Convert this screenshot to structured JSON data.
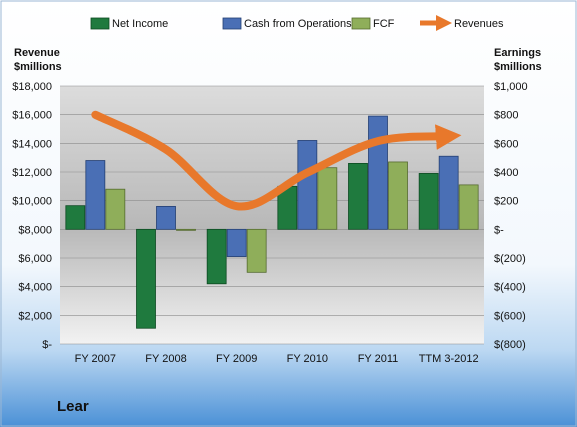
{
  "chart_data": {
    "type": "bar",
    "company": "Lear",
    "categories": [
      "FY 2007",
      "FY 2008",
      "FY 2009",
      "FY 2010",
      "FY 2011",
      "TTM 3-2012"
    ],
    "series": [
      {
        "name": "Net Income",
        "axis": "right",
        "color": "#1f7a3e",
        "values": [
          165,
          -690,
          -380,
          300,
          460,
          390
        ]
      },
      {
        "name": "Cash from Operations",
        "axis": "right",
        "color": "#4a6fb5",
        "values": [
          480,
          160,
          -190,
          620,
          790,
          510
        ]
      },
      {
        "name": "FCF",
        "axis": "right",
        "color": "#8fae5a",
        "values": [
          280,
          -5,
          -300,
          430,
          470,
          310
        ]
      },
      {
        "name": "Revenues",
        "axis": "left",
        "color": "#e8782b",
        "type": "line",
        "values": [
          15995,
          13570,
          9615,
          11955,
          14157,
          14500
        ]
      }
    ],
    "left_axis": {
      "title_line1": "Revenue",
      "title_line2": "$millions",
      "range": [
        0,
        18000
      ],
      "ticks": [
        "$18,000",
        "$16,000",
        "$14,000",
        "$12,000",
        "$10,000",
        "$8,000",
        "$6,000",
        "$4,000",
        "$2,000",
        "$-"
      ]
    },
    "right_axis": {
      "title_line1": "Earnings",
      "title_line2": "$millions",
      "range": [
        -800,
        1000
      ],
      "ticks": [
        "$1,000",
        "$800",
        "$600",
        "$400",
        "$200",
        "$-",
        "$(200)",
        "$(400)",
        "$(600)",
        "$(800)"
      ]
    },
    "legend_position": "top",
    "grid": true
  }
}
